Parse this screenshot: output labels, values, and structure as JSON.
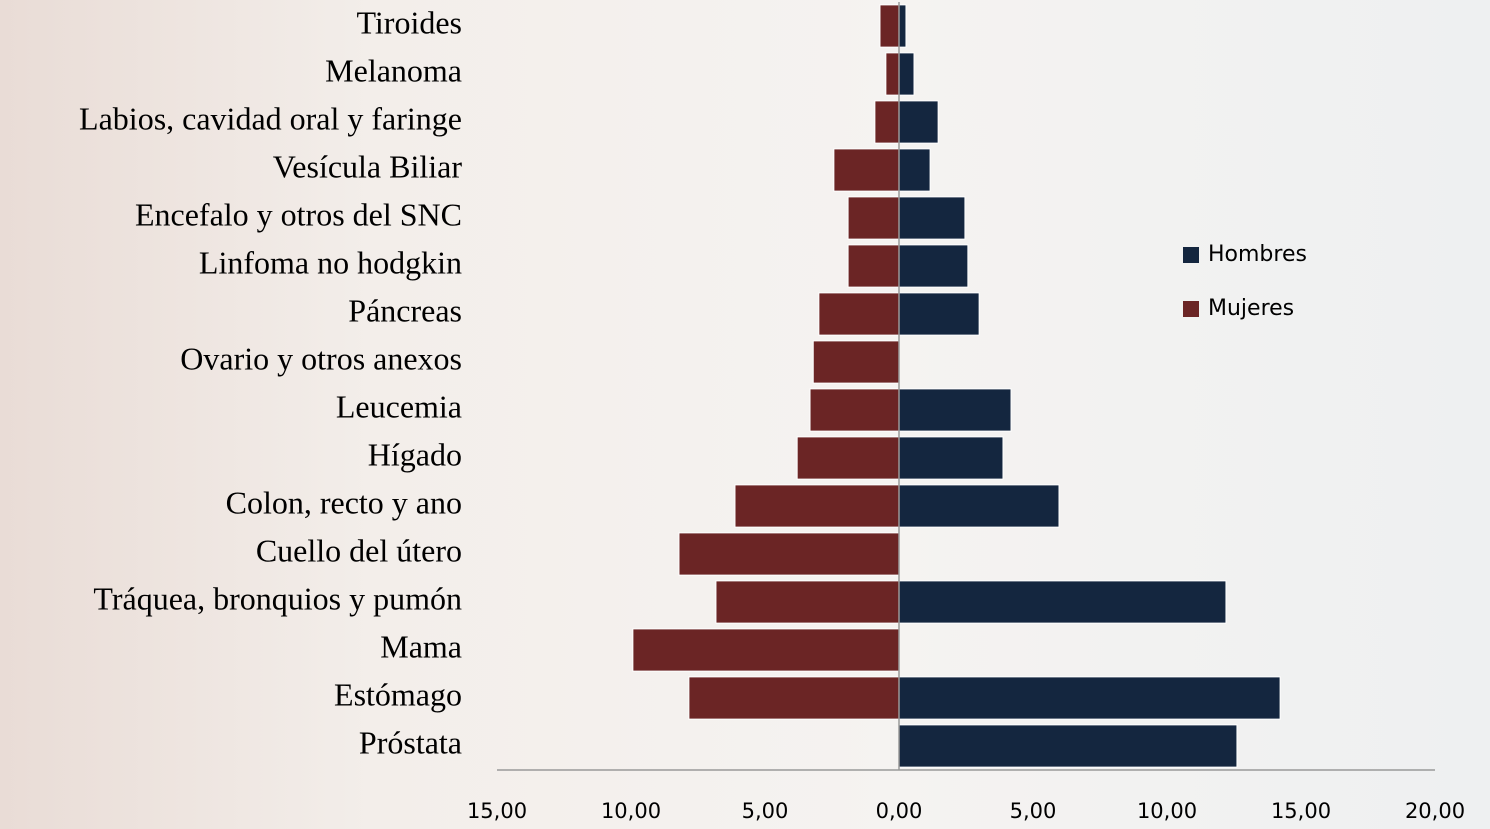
{
  "chart_data": {
    "type": "bar",
    "orientation": "horizontal",
    "categories": [
      "Tiroides",
      "Melanoma",
      "Labios, cavidad oral y faringe",
      "Vesícula Biliar",
      "Encefalo y otros del SNC",
      "Linfoma no hodgkin",
      "Páncreas",
      "Ovario y otros anexos",
      "Leucemia",
      "Hígado",
      "Colon, recto y ano",
      "Cuello del útero",
      "Tráquea, bronquios y pumón",
      "Mama",
      "Estómago",
      "Próstata"
    ],
    "series": [
      {
        "name": "Hombres",
        "color": "#14263f",
        "values": [
          0.26,
          0.56,
          1.46,
          1.16,
          2.46,
          2.57,
          2.99,
          null,
          4.18,
          3.88,
          5.97,
          null,
          12.2,
          null,
          14.22,
          12.61
        ]
      },
      {
        "name": "Mujeres",
        "color": "#6b2525",
        "values": [
          -0.71,
          -0.49,
          -0.9,
          -2.43,
          -1.9,
          -1.9,
          -2.99,
          -3.2,
          -3.32,
          -3.8,
          -6.12,
          -8.21,
          -6.83,
          -9.93,
          -7.84,
          null
        ]
      }
    ],
    "xlim": [
      -15,
      20
    ],
    "xticks": [
      {
        "value": -15,
        "label": "15,00"
      },
      {
        "value": -10,
        "label": "10,00"
      },
      {
        "value": -5,
        "label": "5,00"
      },
      {
        "value": 0,
        "label": "0,00"
      },
      {
        "value": 5,
        "label": "5,00"
      },
      {
        "value": 10,
        "label": "10,00"
      },
      {
        "value": 15,
        "label": "15,00"
      },
      {
        "value": 20,
        "label": "20,00"
      }
    ],
    "legend": "right"
  }
}
